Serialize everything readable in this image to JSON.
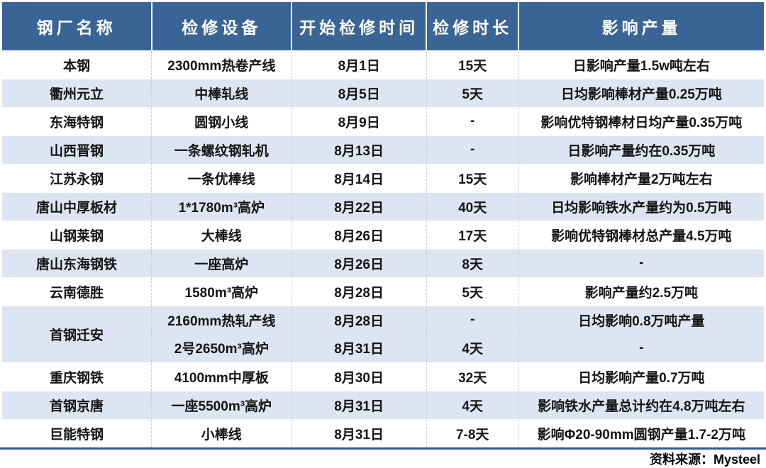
{
  "colors": {
    "header_bg": "#3A6494",
    "header_text": "#FFFFFF",
    "row_bg": "#FFFFFF",
    "row_alt_bg": "#DCE5F1",
    "bottom_rule": "#2E5C8E",
    "body_text": "#141414"
  },
  "source_note": "资料来源：Mysteel",
  "table": {
    "columns": [
      "钢厂名称",
      "检修设备",
      "开始检修时间",
      "检修时长",
      "影响产量"
    ],
    "rows": [
      {
        "mill": "本钢",
        "items": [
          {
            "device": "2300mm热卷产线",
            "start": "8月1日",
            "duration": "15天",
            "impact": "日影响产量1.5w吨左右"
          }
        ]
      },
      {
        "mill": "衢州元立",
        "items": [
          {
            "device": "中棒轧线",
            "start": "8月5日",
            "duration": "5天",
            "impact": "日均影响棒材产量0.25万吨"
          }
        ]
      },
      {
        "mill": "东海特钢",
        "items": [
          {
            "device": "圆钢小线",
            "start": "8月9日",
            "duration": "-",
            "impact": "影响优特钢棒材日均产量0.35万吨"
          }
        ]
      },
      {
        "mill": "山西晋钢",
        "items": [
          {
            "device": "一条螺纹钢轧机",
            "start": "8月13日",
            "duration": "-",
            "impact": "日影响产量约在0.35万吨"
          }
        ]
      },
      {
        "mill": "江苏永钢",
        "items": [
          {
            "device": "一条优棒线",
            "start": "8月14日",
            "duration": "15天",
            "impact": "影响棒材产量2万吨左右"
          }
        ]
      },
      {
        "mill": "唐山中厚板材",
        "items": [
          {
            "device": "1*1780m³高炉",
            "start": "8月22日",
            "duration": "40天",
            "impact": "日均影响铁水产量约为0.5万吨"
          }
        ]
      },
      {
        "mill": "山钢莱钢",
        "items": [
          {
            "device": "大棒线",
            "start": "8月26日",
            "duration": "17天",
            "impact": "影响优特钢棒材总产量4.5万吨"
          }
        ]
      },
      {
        "mill": "唐山东海钢铁",
        "items": [
          {
            "device": "一座高炉",
            "start": "8月26日",
            "duration": "8天",
            "impact": "-"
          }
        ]
      },
      {
        "mill": "云南德胜",
        "items": [
          {
            "device": "1580m³高炉",
            "start": "8月28日",
            "duration": "5天",
            "impact": "影响产量约2.5万吨"
          }
        ]
      },
      {
        "mill": "首钢迁安",
        "items": [
          {
            "device": "2160mm热轧产线",
            "start": "8月28日",
            "duration": "-",
            "impact": "日均影响0.8万吨产量"
          },
          {
            "device": "2号2650m³高炉",
            "start": "8月31日",
            "duration": "4天",
            "impact": "-"
          }
        ]
      },
      {
        "mill": "重庆钢铁",
        "items": [
          {
            "device": "4100mm中厚板",
            "start": "8月30日",
            "duration": "32天",
            "impact": "日均影响产量0.7万吨"
          }
        ]
      },
      {
        "mill": "首钢京唐",
        "items": [
          {
            "device": "一座5500m³高炉",
            "start": "8月31日",
            "duration": "4天",
            "impact": "影响铁水产量总计约在4.8万吨左右"
          }
        ]
      },
      {
        "mill": "巨能特钢",
        "items": [
          {
            "device": "小棒线",
            "start": "8月31日",
            "duration": "7-8天",
            "impact": "影响Φ20-90mm圆钢产量1.7-2万吨"
          }
        ]
      }
    ]
  }
}
